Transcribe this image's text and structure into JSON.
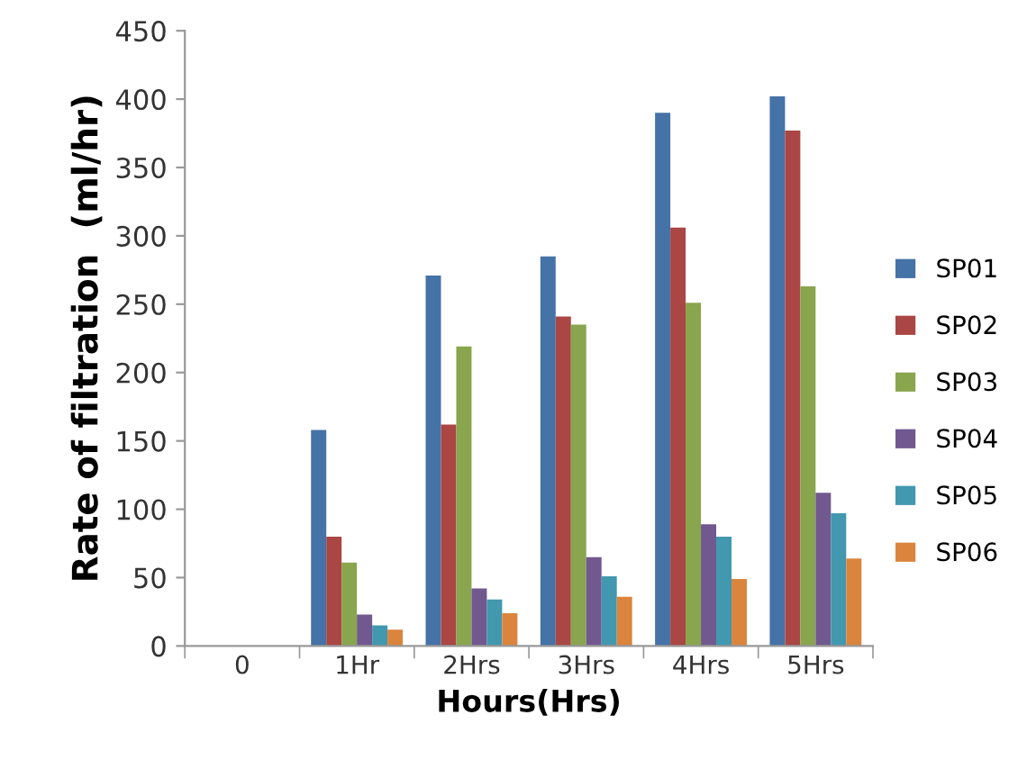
{
  "chart_data": {
    "type": "bar",
    "xlabel": "Hours(Hrs)",
    "ylabel": "Rate of filtration  (ml/hr)",
    "categories": [
      "0",
      "1Hr",
      "2Hrs",
      "3Hrs",
      "4Hrs",
      "5Hrs"
    ],
    "series": [
      {
        "name": "SP01",
        "color": "#4572a7",
        "values": [
          0,
          158,
          271,
          285,
          390,
          402
        ]
      },
      {
        "name": "SP02",
        "color": "#aa4643",
        "values": [
          0,
          80,
          162,
          241,
          306,
          377
        ]
      },
      {
        "name": "SP03",
        "color": "#89a54e",
        "values": [
          0,
          61,
          219,
          235,
          251,
          263
        ]
      },
      {
        "name": "SP04",
        "color": "#71588f",
        "values": [
          0,
          23,
          42,
          65,
          89,
          112
        ]
      },
      {
        "name": "SP05",
        "color": "#4198af",
        "values": [
          0,
          15,
          34,
          51,
          80,
          97
        ]
      },
      {
        "name": "SP06",
        "color": "#db843d",
        "values": [
          0,
          12,
          24,
          36,
          49,
          64
        ]
      }
    ],
    "ylim": [
      0,
      450
    ],
    "yticks": [
      0,
      50,
      100,
      150,
      200,
      250,
      300,
      350,
      400,
      450
    ],
    "grid": false,
    "legend": "right"
  }
}
